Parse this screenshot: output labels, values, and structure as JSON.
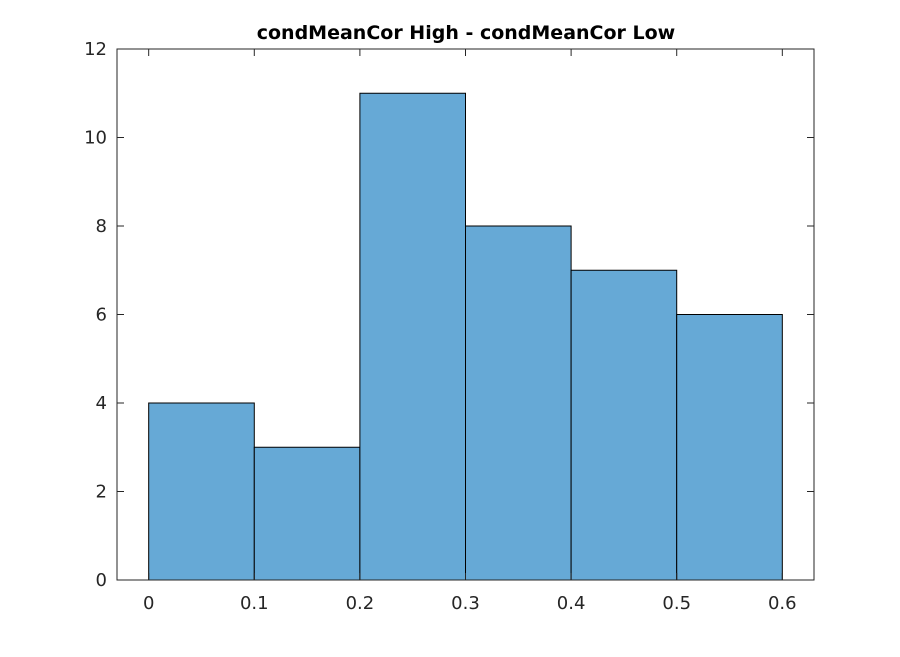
{
  "chart_data": {
    "type": "bar",
    "title": "condMeanCor High - condMeanCor Low",
    "xlabel": "",
    "ylabel": "",
    "bin_edges": [
      0,
      0.1,
      0.2,
      0.3,
      0.4,
      0.5,
      0.6
    ],
    "values": [
      4,
      3,
      11,
      8,
      7,
      6
    ],
    "xlim": [
      -0.03,
      0.63
    ],
    "ylim": [
      0,
      12
    ],
    "xticks": [
      0,
      0.1,
      0.2,
      0.3,
      0.4,
      0.5,
      0.6
    ],
    "xtick_labels": [
      "0",
      "0.1",
      "0.2",
      "0.3",
      "0.4",
      "0.5",
      "0.6"
    ],
    "yticks": [
      0,
      2,
      4,
      6,
      8,
      10,
      12
    ],
    "ytick_labels": [
      "0",
      "2",
      "4",
      "6",
      "8",
      "10",
      "12"
    ],
    "grid": false,
    "bar_color": "#66a9d6",
    "edge_color": "#000000",
    "axis_color": "#262626"
  }
}
